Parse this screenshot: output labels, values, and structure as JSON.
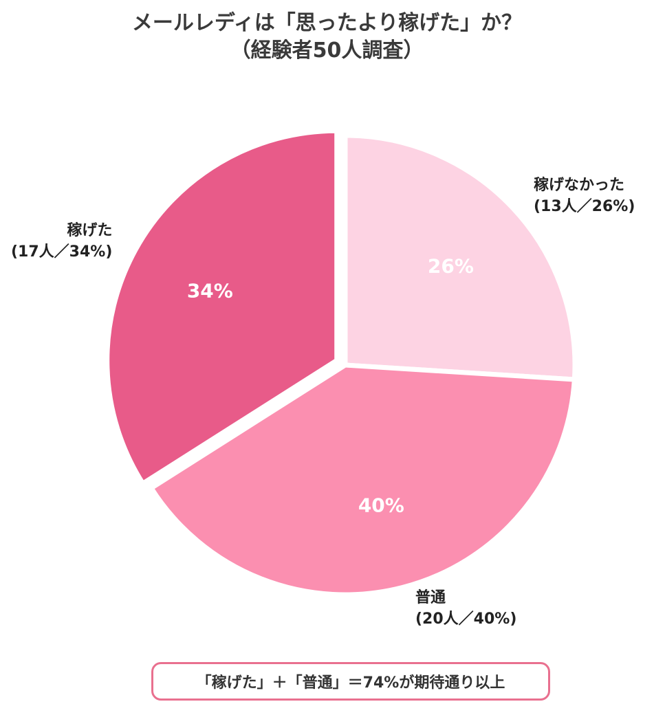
{
  "title": {
    "line1": "メールレディは「思ったより稼げた」か？",
    "line2": "（経験者50人調査）"
  },
  "chart_data": {
    "type": "pie",
    "title": "メールレディは「思ったより稼げた」か？（経験者50人調査）",
    "total": 50,
    "slices": [
      {
        "name": "稼げなかった",
        "count_label": "(13人／26%)",
        "count": 13,
        "value": 26,
        "value_label": "26%",
        "color": "#fdd3e3",
        "value_text_color": "#ffffff"
      },
      {
        "name": "普通",
        "count_label": "(20人／40%)",
        "count": 20,
        "value": 40,
        "value_label": "40%",
        "color": "#fb8fb0",
        "value_text_color": "#ffffff"
      },
      {
        "name": "稼げた",
        "count_label": "(17人／34%)",
        "count": 17,
        "value": 34,
        "value_label": "34%",
        "color": "#e85b89",
        "value_text_color": "#ffffff",
        "exploded": true
      }
    ],
    "start": "12 o'clock",
    "direction": "clockwise"
  },
  "summary": {
    "text": "「稼げた」＋「普通」＝74%が期待通り以上"
  }
}
